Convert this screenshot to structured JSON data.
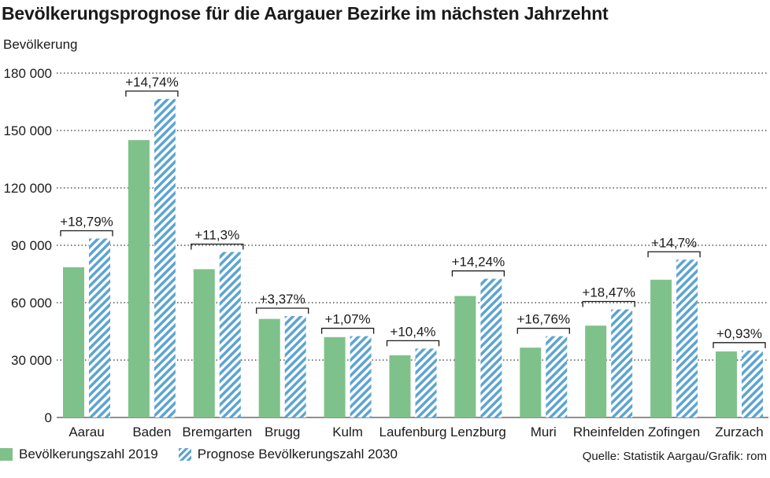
{
  "chart_data": {
    "type": "bar",
    "title": "Bevölkerungsprognose für die Aargauer Bezirke im nächsten Jahrzehnt",
    "ylabel": "Bevölkerung",
    "xlabel": "",
    "ylim": [
      0,
      180000
    ],
    "yticks": [
      "0",
      "30 000",
      "60 000",
      "90 000",
      "120 000",
      "150 000",
      "180 000"
    ],
    "ytick_values": [
      0,
      30000,
      60000,
      90000,
      120000,
      150000,
      180000
    ],
    "categories": [
      "Aarau",
      "Baden",
      "Bremgarten",
      "Brugg",
      "Kulm",
      "Laufenburg",
      "Lenzburg",
      "Muri",
      "Rheinfelden",
      "Zofingen",
      "Zurzach"
    ],
    "series": [
      {
        "name": "Bevölkerungszahl 2019",
        "values": [
          78500,
          145000,
          77500,
          51500,
          42000,
          32500,
          63500,
          36500,
          48000,
          72000,
          34500
        ]
      },
      {
        "name": "Prognose Bevölkerungszahl 2030",
        "values": [
          93500,
          166500,
          86500,
          53000,
          42500,
          36000,
          72500,
          42500,
          56500,
          82500,
          35000
        ]
      }
    ],
    "annotations": [
      "+18,79%",
      "+14,74%",
      "+11,3%",
      "+3,37%",
      "+1,07%",
      "+10,4%",
      "+14,24%",
      "+16,76%",
      "+18,47%",
      "+14,7%",
      "+0,93%"
    ],
    "colors": {
      "series_2019": "#7fc18a",
      "series_2030": "#5ca4d1",
      "grid": "#333333"
    },
    "grid": true,
    "legend_position": "bottom-left"
  },
  "legend": {
    "item_2019": "Bevölkerungszahl 2019",
    "item_2030": "Prognose Bevölkerungszahl 2030"
  },
  "source": "Quelle: Statistik Aargau/Grafik: rom"
}
